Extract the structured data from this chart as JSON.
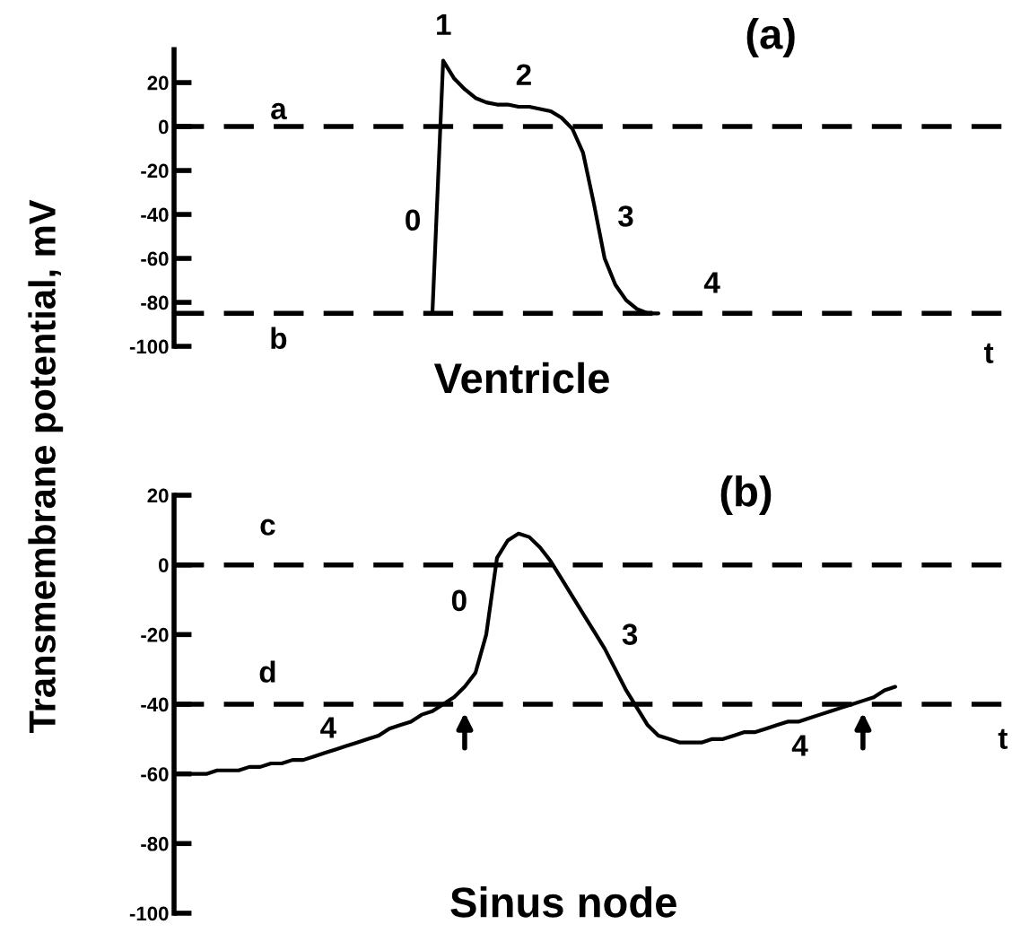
{
  "chart_data": [
    {
      "type": "line",
      "title": "(a)",
      "xlabel": "Ventricle",
      "ylabel": "Transmembrane potential, mV",
      "categories": [
        null,
        null,
        null,
        null,
        null,
        null,
        null,
        null,
        null,
        null,
        null,
        null,
        null,
        null,
        null,
        null,
        null,
        null,
        null,
        null,
        null,
        null,
        null,
        null,
        null,
        null,
        null,
        null,
        null,
        null,
        null,
        null,
        null,
        null,
        null,
        null,
        null,
        null,
        null,
        null,
        null,
        null,
        null,
        null,
        null,
        null,
        null,
        null,
        null,
        null,
        null,
        null,
        null,
        null,
        null,
        null,
        null,
        null,
        null,
        null,
        null,
        null,
        null,
        null,
        null,
        null,
        null,
        null,
        null,
        null,
        null,
        null,
        null,
        null,
        null,
        null,
        null,
        null
      ],
      "series": [
        {
          "color": "#000000",
          "values": [
            null,
            null,
            null,
            null,
            null,
            null,
            null,
            null,
            null,
            null,
            null,
            null,
            null,
            null,
            null,
            null,
            null,
            null,
            null,
            null,
            null,
            null,
            null,
            null,
            -85,
            30,
            22,
            17,
            13,
            11,
            10,
            10,
            9,
            9,
            8,
            7,
            4,
            -1,
            -12,
            -35,
            -60,
            -72,
            -79,
            -83,
            -85,
            -85,
            null,
            null,
            null,
            null,
            null,
            null,
            null,
            null,
            null,
            null,
            null,
            null,
            null,
            null,
            null,
            null,
            null,
            null,
            null,
            null,
            null,
            null,
            null,
            null,
            null,
            null,
            null,
            null,
            null,
            null,
            null,
            null
          ]
        }
      ],
      "ylim": [
        -100,
        35
      ],
      "yticks": [
        20,
        0,
        -20,
        -40,
        -60,
        -80,
        -100
      ],
      "tick_labels": "y",
      "line_style": "solid",
      "marker": "none",
      "grid": false,
      "legend": false,
      "ref_lines": [
        {
          "axis": "y",
          "value": 0,
          "label": "a",
          "color": "#000000",
          "line_style": "dashed"
        },
        {
          "axis": "y",
          "value": -85,
          "label": "b",
          "color": "#000000",
          "line_style": "dashed"
        }
      ],
      "annotations": [
        "1",
        "2",
        "0",
        "3",
        "4",
        "t"
      ]
    },
    {
      "type": "line",
      "title": "(b)",
      "xlabel": "Sinus node",
      "categories": [
        null,
        null,
        null,
        null,
        null,
        null,
        null,
        null,
        null,
        null,
        null,
        null,
        null,
        null,
        null,
        null,
        null,
        null,
        null,
        null,
        null,
        null,
        null,
        null,
        null,
        null,
        null,
        null,
        null,
        null,
        null,
        null,
        null,
        null,
        null,
        null,
        null,
        null,
        null,
        null,
        null,
        null,
        null,
        null,
        null,
        null,
        null,
        null,
        null,
        null,
        null,
        null,
        null,
        null,
        null,
        null,
        null,
        null,
        null,
        null,
        null,
        null,
        null,
        null,
        null,
        null,
        null,
        null,
        null,
        null,
        null,
        null,
        null,
        null,
        null,
        null,
        null,
        null
      ],
      "series": [
        {
          "color": "#000000",
          "values": [
            null,
            -60,
            -60,
            -60,
            -59,
            -59,
            -59,
            -58,
            -58,
            -57,
            -57,
            -56,
            -56,
            -55,
            -54,
            -53,
            -52,
            -51,
            -50,
            -49,
            -47,
            -46,
            -45,
            -43,
            -42,
            -40,
            -38,
            -35,
            -31,
            -20,
            2,
            7,
            9,
            8,
            5,
            1,
            -4,
            -9,
            -14,
            -19,
            -24,
            -30,
            -36,
            -41,
            -46,
            -49,
            -50,
            -51,
            -51,
            -51,
            -50,
            -50,
            -49,
            -48,
            -48,
            -47,
            -46,
            -45,
            -45,
            -44,
            -43,
            -42,
            -41,
            -40,
            -39,
            -38,
            -36,
            -35,
            null,
            null,
            null,
            null,
            null,
            null,
            null,
            null,
            null,
            null
          ]
        }
      ],
      "ylim": [
        -100,
        20
      ],
      "yticks": [
        20,
        0,
        -20,
        -40,
        -60,
        -80,
        -100
      ],
      "tick_labels": "y",
      "line_style": "solid",
      "marker": "none",
      "grid": false,
      "legend": false,
      "ref_lines": [
        {
          "axis": "y",
          "value": 0,
          "label": "c",
          "color": "#000000",
          "line_style": "dashed"
        },
        {
          "axis": "y",
          "value": -40,
          "label": "d",
          "color": "#000000",
          "line_style": "dashed"
        }
      ],
      "annotations": [
        "0",
        "3",
        "4",
        "4",
        "t"
      ]
    }
  ]
}
